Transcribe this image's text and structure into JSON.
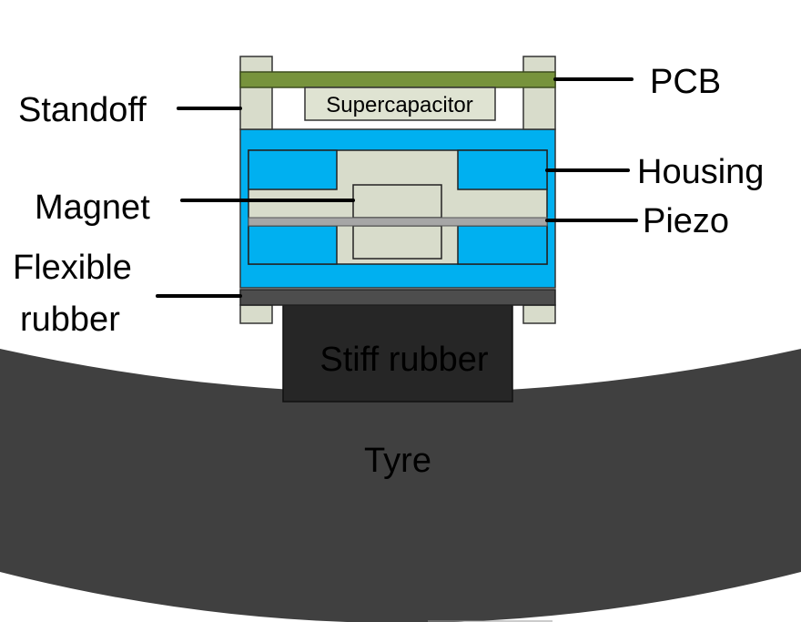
{
  "labels": {
    "pcb": "PCB",
    "standoff": "Standoff",
    "supercapacitor": "Supercapacitor",
    "housing": "Housing",
    "magnet": "Magnet",
    "piezo": "Piezo",
    "flexible_rubber_line1": "Flexible",
    "flexible_rubber_line2": "rubber",
    "stiff_rubber": "Stiff rubber",
    "tyre": "Tyre"
  },
  "colors": {
    "pcb": "#77933c",
    "standoff": "#d8dccb",
    "supercapacitor": "#dfe3d2",
    "housing": "#00b0f0",
    "inner_frame": "#d8dccb",
    "magnet": "#d8dccb",
    "piezo": "#a6a6a6",
    "flexible_rubber": "#4d4d4d",
    "stiff_rubber": "#262626",
    "tyre": "#404040",
    "leader": "#000000"
  }
}
